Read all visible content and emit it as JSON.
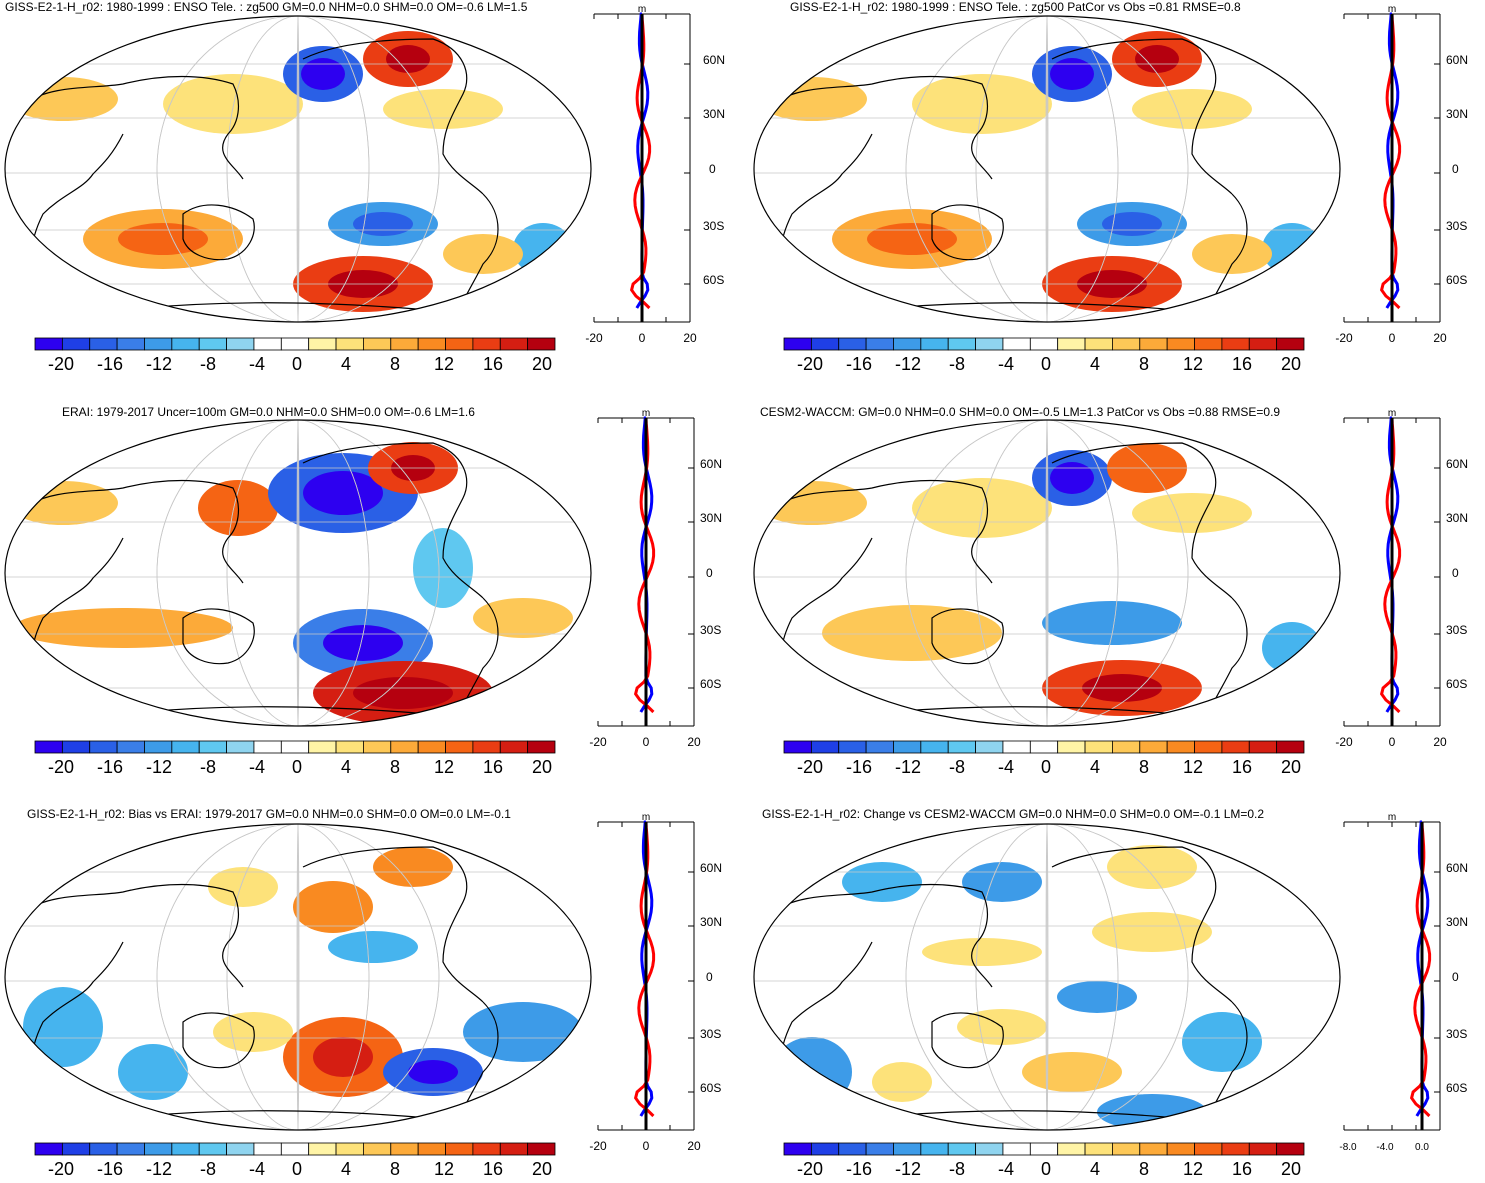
{
  "colors": {
    "palette": [
      "#2d00f0",
      "#1f3fe6",
      "#2a60e6",
      "#3a7ee8",
      "#3d9be8",
      "#46b4ee",
      "#5fc8f0",
      "#8fd4ef",
      "#ffffff",
      "#ffffff",
      "#fff4a6",
      "#fde27a",
      "#fdc857",
      "#fcaa39",
      "#f98a21",
      "#f56414",
      "#ea3d13",
      "#d51e12",
      "#b5000f"
    ],
    "zonal_model": "#ff0000",
    "zonal_obs": "#0000ff",
    "zonal_zero": "#000000",
    "coast": "#000000",
    "grid": "#c8c8c8"
  },
  "panels": [
    {
      "id": "p1",
      "title": "GISS-E2-1-H_r02: 1980-1999 : ENSO Tele. : zg500 GM=0.0 NHM=0.0 SHM=0.0 OM=-0.6 LM=1.5",
      "zonal_unit": "m",
      "zonal_xticks": [
        "-20",
        "0",
        "20"
      ],
      "lat_labels": [
        "60N",
        "30N",
        "0",
        "30S",
        "60S"
      ],
      "colorbar_labels": [
        "-20",
        "-16",
        "-12",
        "-8",
        "-4",
        "0",
        "4",
        "8",
        "12",
        "16",
        "20"
      ]
    },
    {
      "id": "p2",
      "title": "GISS-E2-1-H_r02: 1980-1999 : ENSO Tele. : zg500 PatCor vs Obs =0.81 RMSE=0.8",
      "zonal_unit": "m",
      "zonal_xticks": [
        "-20",
        "0",
        "20"
      ],
      "lat_labels": [
        "60N",
        "30N",
        "0",
        "30S",
        "60S"
      ],
      "colorbar_labels": [
        "-20",
        "-16",
        "-12",
        "-8",
        "-4",
        "0",
        "4",
        "8",
        "12",
        "16",
        "20"
      ]
    },
    {
      "id": "p3",
      "title": "ERAI: 1979-2017 Uncer=100m GM=0.0 NHM=0.0 SHM=0.0 OM=-0.6 LM=1.6",
      "zonal_unit": "m",
      "zonal_xticks": [
        "-20",
        "0",
        "20"
      ],
      "lat_labels": [
        "60N",
        "30N",
        "0",
        "30S",
        "60S"
      ],
      "colorbar_labels": [
        "-20",
        "-16",
        "-12",
        "-8",
        "-4",
        "0",
        "4",
        "8",
        "12",
        "16",
        "20"
      ]
    },
    {
      "id": "p4",
      "title": "CESM2-WACCM: GM=0.0 NHM=0.0 SHM=0.0 OM=-0.5 LM=1.3 PatCor vs Obs =0.88 RMSE=0.9",
      "zonal_unit": "m",
      "zonal_xticks": [
        "-20",
        "0",
        "20"
      ],
      "lat_labels": [
        "60N",
        "30N",
        "0",
        "30S",
        "60S"
      ],
      "colorbar_labels": [
        "-20",
        "-16",
        "-12",
        "-8",
        "-4",
        "0",
        "4",
        "8",
        "12",
        "16",
        "20"
      ]
    },
    {
      "id": "p5",
      "title": "GISS-E2-1-H_r02: Bias vs ERAI: 1979-2017 GM=0.0 NHM=0.0 SHM=0.0 OM=0.0 LM=-0.1",
      "zonal_unit": "m",
      "zonal_xticks": [
        "-20",
        "0",
        "20"
      ],
      "lat_labels": [
        "60N",
        "30N",
        "0",
        "30S",
        "60S"
      ],
      "colorbar_labels": [
        "-20",
        "-16",
        "-12",
        "-8",
        "-4",
        "0",
        "4",
        "8",
        "12",
        "16",
        "20"
      ]
    },
    {
      "id": "p6",
      "title": "GISS-E2-1-H_r02: Change vs CESM2-WACCM GM=0.0 NHM=0.0 SHM=0.0 OM=-0.1 LM=0.2",
      "zonal_unit": "m",
      "zonal_xticks": [
        "-8.0",
        "-4.0",
        "0.0"
      ],
      "lat_labels": [
        "60N",
        "30N",
        "0",
        "30S",
        "60S"
      ],
      "colorbar_labels": [
        "-20",
        "-16",
        "-12",
        "-8",
        "-4",
        "0",
        "4",
        "8",
        "12",
        "16",
        "20"
      ]
    }
  ]
}
